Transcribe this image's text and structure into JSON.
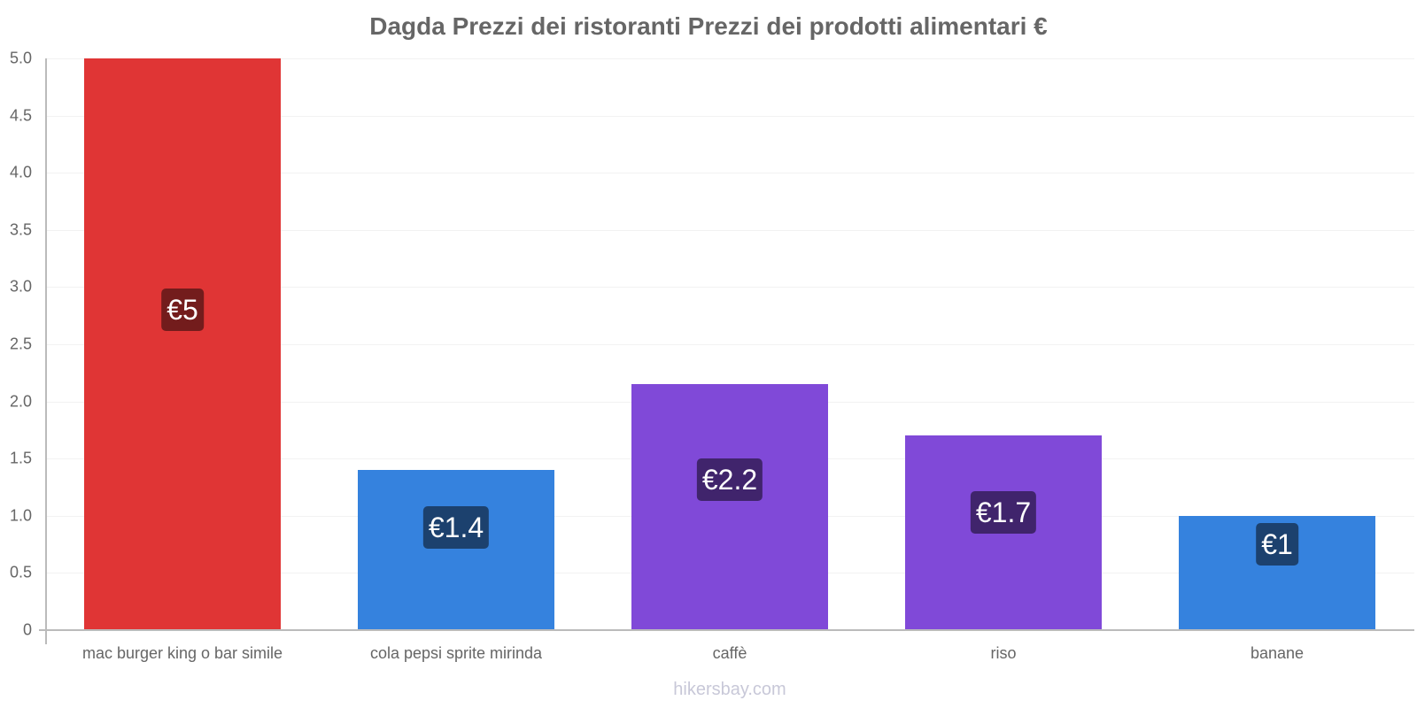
{
  "title": "Dagda Prezzi dei ristoranti Prezzi dei prodotti alimentari €",
  "watermark": "hikersbay.com",
  "yaxis": {
    "ticks": [
      "0",
      "0.5",
      "1.0",
      "1.5",
      "2.0",
      "2.5",
      "3.0",
      "3.5",
      "4.0",
      "4.5",
      "5.0"
    ],
    "min": 0,
    "max": 5.0
  },
  "bars": [
    {
      "category": "mac burger king o bar simile",
      "value": 5.0,
      "label": "€5",
      "color": "#e03535",
      "label_bg": "#731c1c"
    },
    {
      "category": "cola pepsi sprite mirinda",
      "value": 1.4,
      "label": "€1.4",
      "color": "#3582de",
      "label_bg": "#1c416e"
    },
    {
      "category": "caffè",
      "value": 2.15,
      "label": "€2.2",
      "color": "#8049d8",
      "label_bg": "#40246c"
    },
    {
      "category": "riso",
      "value": 1.7,
      "label": "€1.7",
      "color": "#8049d8",
      "label_bg": "#40246c"
    },
    {
      "category": "banane",
      "value": 1.0,
      "label": "€1",
      "color": "#3582de",
      "label_bg": "#1c416e"
    }
  ],
  "chart_data": {
    "type": "bar",
    "title": "Dagda Prezzi dei ristoranti Prezzi dei prodotti alimentari €",
    "categories": [
      "mac burger king o bar simile",
      "cola pepsi sprite mirinda",
      "caffè",
      "riso",
      "banane"
    ],
    "values": [
      5.0,
      1.4,
      2.15,
      1.7,
      1.0
    ],
    "data_labels": [
      "€5",
      "€1.4",
      "€2.2",
      "€1.7",
      "€1"
    ],
    "colors": [
      "#e03535",
      "#3582de",
      "#8049d8",
      "#8049d8",
      "#3582de"
    ],
    "xlabel": "",
    "ylabel": "",
    "ylim": [
      0,
      5.0
    ],
    "yticks": [
      0,
      0.5,
      1.0,
      1.5,
      2.0,
      2.5,
      3.0,
      3.5,
      4.0,
      4.5,
      5.0
    ],
    "grid": true,
    "legend": "none"
  }
}
